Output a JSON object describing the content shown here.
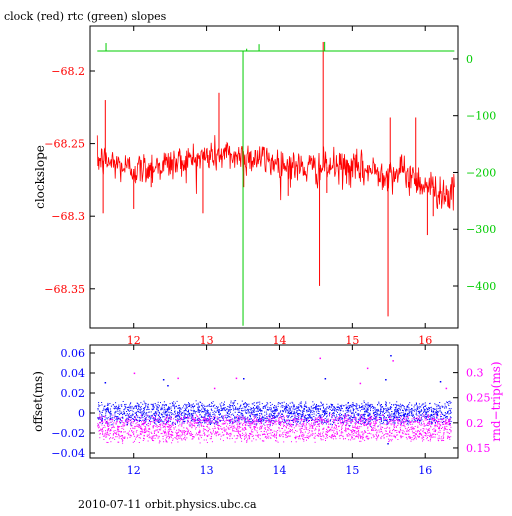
{
  "title": "clock (red) rtc (green) slopes",
  "footer": "2010-07-11 orbit.physics.ubc.ca",
  "colors": {
    "clock": "#ff0000",
    "rtc": "#00cc00",
    "offset": "#0000ff",
    "rndtrip": "#ff00ff",
    "axis": "#000000"
  },
  "chart_data": [
    {
      "id": "slopes",
      "type": "line",
      "title": "clock (red) rtc (green) slopes",
      "xlabel": "",
      "ylabel": "clockslope",
      "xlim": [
        11.4,
        16.45
      ],
      "xticks": [
        12,
        13,
        14,
        15,
        16
      ],
      "xtick_labels": [
        "12",
        "13",
        "14",
        "15",
        "16"
      ],
      "xtick_color": "#ff0000",
      "ylim": [
        -68.377,
        -68.169
      ],
      "yticks": [
        -68.2,
        -68.25,
        -68.3,
        -68.35
      ],
      "ytick_labels": [
        "−68.2",
        "−68.25",
        "−68.3",
        "−68.35"
      ],
      "ytick_color": "#ff0000",
      "y2label": "",
      "y2lim": [
        -474,
        58
      ],
      "y2ticks": [
        0,
        -100,
        -200,
        -300,
        -400
      ],
      "y2tick_labels": [
        "0",
        "−100",
        "−200",
        "−300",
        "−400"
      ],
      "y2tick_color": "#00cc00",
      "series": [
        {
          "name": "clock",
          "axis": "left",
          "color": "#ff0000",
          "t": [
            11.5,
            11.7,
            11.9,
            12.1,
            12.3,
            12.5,
            12.7,
            12.9,
            13.1,
            13.3,
            13.5,
            13.7,
            13.9,
            14.1,
            14.3,
            14.5,
            14.7,
            14.9,
            15.1,
            15.3,
            15.5,
            15.7,
            15.9,
            16.1,
            16.3
          ],
          "level": [
            -68.261,
            -68.263,
            -68.267,
            -68.268,
            -68.265,
            -68.264,
            -68.262,
            -68.26,
            -68.258,
            -68.258,
            -68.259,
            -68.26,
            -68.262,
            -68.265,
            -68.267,
            -68.267,
            -68.266,
            -68.267,
            -68.268,
            -68.269,
            -68.27,
            -68.27,
            -68.275,
            -68.281,
            -68.285
          ],
          "noise": 0.006,
          "spikes": [
            [
              11.58,
              -68.298
            ],
            [
              11.61,
              -68.22
            ],
            [
              12.0,
              -68.295
            ],
            [
              12.24,
              -68.28
            ],
            [
              12.95,
              -68.298
            ],
            [
              13.17,
              -68.215
            ],
            [
              13.51,
              -68.28
            ],
            [
              14.12,
              -68.286
            ],
            [
              14.55,
              -68.348
            ],
            [
              14.6,
              -68.18
            ],
            [
              14.65,
              -68.284
            ],
            [
              15.49,
              -68.369
            ],
            [
              15.52,
              -68.232
            ],
            [
              15.87,
              -68.232
            ],
            [
              15.93,
              -68.285
            ],
            [
              16.03,
              -68.313
            ],
            [
              16.11,
              -68.3
            ],
            [
              16.26,
              -68.285
            ]
          ]
        },
        {
          "name": "rtc",
          "axis": "right",
          "color": "#00cc00",
          "t": [
            11.5,
            16.4
          ],
          "level": [
            14,
            14
          ],
          "spikes": [
            [
              11.62,
              28
            ],
            [
              13.5,
              -470
            ],
            [
              13.55,
              18
            ],
            [
              13.72,
              26
            ],
            [
              14.62,
              30
            ]
          ]
        }
      ]
    },
    {
      "id": "offset",
      "type": "scatter",
      "xlabel": "",
      "ylabel": "offset(ms)",
      "xlim": [
        11.4,
        16.45
      ],
      "xticks": [
        12,
        13,
        14,
        15,
        16
      ],
      "xtick_labels": [
        "12",
        "13",
        "14",
        "15",
        "16"
      ],
      "xtick_color": "#0000ff",
      "ylim": [
        -0.045,
        0.068
      ],
      "yticks": [
        0.06,
        0.04,
        0.02,
        0,
        -0.02,
        -0.04
      ],
      "ytick_labels": [
        "0.06",
        "0.04",
        "0.02",
        "0",
        "−0.02",
        "−0.04"
      ],
      "ytick_color": "#0000ff",
      "y2label": "rnd−trip(ms)",
      "y2lim": [
        0.13,
        0.355
      ],
      "y2ticks": [
        0.3,
        0.25,
        0.2,
        0.15
      ],
      "y2tick_labels": [
        "0.3",
        "0.25",
        "0.2",
        "0.15"
      ],
      "y2tick_color": "#ff00ff",
      "series": [
        {
          "name": "offset",
          "axis": "left",
          "color": "#0000ff",
          "x_range": [
            11.5,
            16.35
          ],
          "center": 0.0,
          "spread": 0.013,
          "outliers": [
            [
              11.6,
              0.031
            ],
            [
              12.4,
              0.034
            ],
            [
              12.46,
              0.028
            ],
            [
              13.5,
              0.035
            ],
            [
              14.62,
              0.035
            ],
            [
              15.45,
              0.034
            ],
            [
              15.52,
              0.058
            ],
            [
              15.48,
              -0.03
            ],
            [
              16.2,
              0.032
            ]
          ]
        },
        {
          "name": "rnd-trip",
          "axis": "right",
          "color": "#ff00ff",
          "x_range": [
            11.5,
            16.35
          ],
          "center": 0.19,
          "spread": 0.03,
          "outliers": [
            [
              12.0,
              0.3
            ],
            [
              12.6,
              0.29
            ],
            [
              13.4,
              0.29
            ],
            [
              13.1,
              0.27
            ],
            [
              14.55,
              0.33
            ],
            [
              15.1,
              0.28
            ],
            [
              15.2,
              0.31
            ],
            [
              15.55,
              0.325
            ],
            [
              16.28,
              0.27
            ]
          ]
        }
      ]
    }
  ]
}
